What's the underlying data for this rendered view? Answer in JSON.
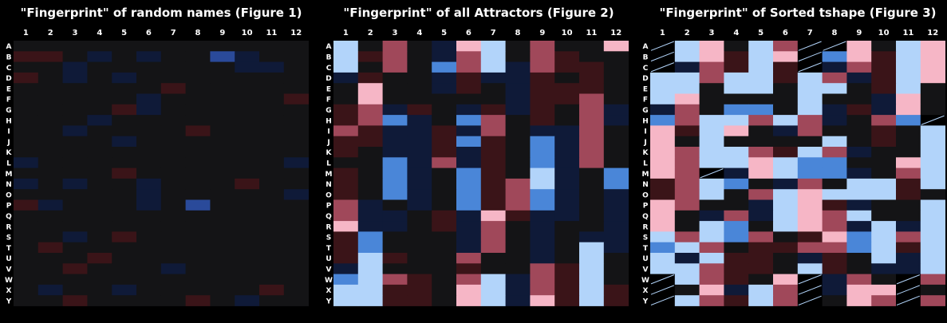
{
  "chart_data": [
    {
      "type": "heatmap",
      "title": "\"Fingerprint\" of random names (Figure 1)",
      "columns": [
        "1",
        "2",
        "3",
        "4",
        "5",
        "6",
        "7",
        "8",
        "9",
        "10",
        "11",
        "12"
      ],
      "rows": [
        "A",
        "B",
        "C",
        "D",
        "E",
        "F",
        "G",
        "H",
        "I",
        "J",
        "K",
        "L",
        "M",
        "N",
        "O",
        "P",
        "Q",
        "R",
        "S",
        "T",
        "U",
        "V",
        "W",
        "X",
        "Y"
      ],
      "cells": [
        [
          "d",
          "d",
          "d",
          "d",
          "d",
          "d",
          "d",
          "d",
          "d",
          "d",
          "d",
          "d"
        ],
        [
          "r",
          "r",
          "d",
          "b",
          "d",
          "b",
          "d",
          "d",
          "B",
          "b",
          "d",
          "d"
        ],
        [
          "d",
          "d",
          "b",
          "d",
          "d",
          "d",
          "d",
          "d",
          "d",
          "b",
          "b",
          "d"
        ],
        [
          "r",
          "d",
          "b",
          "d",
          "b",
          "d",
          "d",
          "d",
          "d",
          "d",
          "d",
          "d"
        ],
        [
          "d",
          "d",
          "d",
          "d",
          "d",
          "d",
          "r",
          "d",
          "d",
          "d",
          "d",
          "d"
        ],
        [
          "d",
          "d",
          "d",
          "d",
          "d",
          "b",
          "d",
          "d",
          "d",
          "d",
          "d",
          "r"
        ],
        [
          "d",
          "d",
          "d",
          "d",
          "r",
          "b",
          "d",
          "d",
          "d",
          "d",
          "d",
          "d"
        ],
        [
          "d",
          "d",
          "d",
          "b",
          "d",
          "d",
          "d",
          "d",
          "d",
          "d",
          "d",
          "d"
        ],
        [
          "d",
          "d",
          "b",
          "d",
          "d",
          "d",
          "d",
          "r",
          "d",
          "d",
          "d",
          "d"
        ],
        [
          "d",
          "d",
          "d",
          "d",
          "b",
          "d",
          "d",
          "d",
          "d",
          "d",
          "d",
          "d"
        ],
        [
          "d",
          "d",
          "d",
          "d",
          "d",
          "d",
          "d",
          "d",
          "d",
          "d",
          "d",
          "d"
        ],
        [
          "b",
          "d",
          "d",
          "d",
          "d",
          "d",
          "d",
          "d",
          "d",
          "d",
          "d",
          "b"
        ],
        [
          "d",
          "d",
          "d",
          "d",
          "r",
          "d",
          "d",
          "d",
          "d",
          "d",
          "d",
          "d"
        ],
        [
          "b",
          "d",
          "b",
          "d",
          "d",
          "b",
          "d",
          "d",
          "d",
          "r",
          "d",
          "d"
        ],
        [
          "d",
          "d",
          "d",
          "d",
          "d",
          "b",
          "d",
          "d",
          "d",
          "d",
          "d",
          "b"
        ],
        [
          "r",
          "b",
          "d",
          "d",
          "d",
          "b",
          "d",
          "B",
          "d",
          "d",
          "d",
          "d"
        ],
        [
          "d",
          "d",
          "d",
          "d",
          "d",
          "d",
          "d",
          "d",
          "d",
          "d",
          "d",
          "d"
        ],
        [
          "d",
          "d",
          "d",
          "d",
          "d",
          "d",
          "d",
          "d",
          "d",
          "d",
          "d",
          "d"
        ],
        [
          "d",
          "d",
          "b",
          "d",
          "r",
          "d",
          "d",
          "d",
          "d",
          "d",
          "d",
          "d"
        ],
        [
          "d",
          "r",
          "d",
          "d",
          "d",
          "d",
          "d",
          "d",
          "d",
          "d",
          "d",
          "d"
        ],
        [
          "d",
          "d",
          "d",
          "r",
          "d",
          "d",
          "d",
          "d",
          "d",
          "d",
          "d",
          "d"
        ],
        [
          "d",
          "d",
          "r",
          "d",
          "d",
          "d",
          "b",
          "d",
          "d",
          "d",
          "d",
          "d"
        ],
        [
          "d",
          "d",
          "d",
          "d",
          "d",
          "d",
          "d",
          "d",
          "d",
          "d",
          "d",
          "d"
        ],
        [
          "d",
          "b",
          "d",
          "d",
          "b",
          "d",
          "d",
          "d",
          "d",
          "d",
          "r",
          "d"
        ],
        [
          "d",
          "d",
          "r",
          "d",
          "d",
          "d",
          "d",
          "r",
          "d",
          "b",
          "d",
          "d"
        ]
      ]
    },
    {
      "type": "heatmap",
      "title": "\"Fingerprint\" of all Attractors (Figure 2)",
      "columns": [
        "1",
        "2",
        "3",
        "4",
        "5",
        "6",
        "7",
        "8",
        "9",
        "10",
        "11",
        "12"
      ],
      "rows": [
        "A",
        "B",
        "C",
        "D",
        "E",
        "F",
        "G",
        "H",
        "I",
        "J",
        "K",
        "L",
        "M",
        "N",
        "O",
        "P",
        "Q",
        "R",
        "S",
        "T",
        "U",
        "V",
        "W",
        "X",
        "Y"
      ],
      "cells": [
        [
          "L",
          "d",
          "R",
          "d",
          "b",
          "P",
          "L",
          "d",
          "R",
          "d",
          "d",
          "P"
        ],
        [
          "L",
          "r",
          "R",
          "d",
          "b",
          "R",
          "L",
          "d",
          "R",
          "r",
          "d",
          "d"
        ],
        [
          "L",
          "d",
          "R",
          "d",
          "M",
          "R",
          "L",
          "b",
          "R",
          "r",
          "r",
          "d"
        ],
        [
          "b",
          "r",
          "d",
          "d",
          "b",
          "r",
          "b",
          "b",
          "r",
          "d",
          "r",
          "d"
        ],
        [
          "d",
          "P",
          "d",
          "d",
          "b",
          "r",
          "d",
          "b",
          "r",
          "r",
          "r",
          "d"
        ],
        [
          "d",
          "P",
          "d",
          "d",
          "d",
          "d",
          "d",
          "b",
          "r",
          "r",
          "R",
          "d"
        ],
        [
          "r",
          "R",
          "b",
          "r",
          "d",
          "b",
          "r",
          "b",
          "r",
          "d",
          "R",
          "b"
        ],
        [
          "r",
          "R",
          "M",
          "b",
          "d",
          "M",
          "R",
          "d",
          "r",
          "d",
          "R",
          "b"
        ],
        [
          "R",
          "r",
          "b",
          "b",
          "r",
          "b",
          "R",
          "d",
          "b",
          "b",
          "R",
          "d"
        ],
        [
          "r",
          "r",
          "b",
          "b",
          "r",
          "M",
          "r",
          "d",
          "M",
          "b",
          "R",
          "d"
        ],
        [
          "r",
          "d",
          "b",
          "b",
          "r",
          "b",
          "r",
          "d",
          "M",
          "b",
          "R",
          "d"
        ],
        [
          "d",
          "d",
          "M",
          "b",
          "R",
          "b",
          "r",
          "d",
          "M",
          "b",
          "R",
          "d"
        ],
        [
          "r",
          "d",
          "M",
          "b",
          "d",
          "M",
          "r",
          "d",
          "L",
          "b",
          "d",
          "M"
        ],
        [
          "r",
          "d",
          "M",
          "b",
          "d",
          "M",
          "r",
          "R",
          "L",
          "b",
          "d",
          "M"
        ],
        [
          "r",
          "d",
          "M",
          "b",
          "d",
          "M",
          "r",
          "R",
          "M",
          "b",
          "d",
          "b"
        ],
        [
          "R",
          "b",
          "d",
          "b",
          "d",
          "M",
          "r",
          "R",
          "M",
          "b",
          "d",
          "b"
        ],
        [
          "R",
          "b",
          "b",
          "d",
          "r",
          "b",
          "P",
          "r",
          "b",
          "b",
          "d",
          "b"
        ],
        [
          "P",
          "b",
          "b",
          "d",
          "r",
          "b",
          "R",
          "d",
          "b",
          "d",
          "d",
          "b"
        ],
        [
          "r",
          "M",
          "d",
          "d",
          "d",
          "b",
          "R",
          "d",
          "b",
          "d",
          "b",
          "b"
        ],
        [
          "r",
          "M",
          "d",
          "d",
          "d",
          "b",
          "R",
          "d",
          "b",
          "d",
          "L",
          "b"
        ],
        [
          "r",
          "L",
          "r",
          "d",
          "d",
          "R",
          "d",
          "d",
          "b",
          "d",
          "L",
          "d"
        ],
        [
          "b",
          "L",
          "d",
          "d",
          "d",
          "r",
          "d",
          "d",
          "R",
          "r",
          "L",
          "d"
        ],
        [
          "M",
          "L",
          "R",
          "r",
          "d",
          "R",
          "L",
          "b",
          "R",
          "r",
          "L",
          "d"
        ],
        [
          "L",
          "L",
          "r",
          "r",
          "d",
          "P",
          "L",
          "b",
          "R",
          "r",
          "L",
          "r"
        ],
        [
          "L",
          "L",
          "r",
          "r",
          "d",
          "P",
          "L",
          "b",
          "P",
          "r",
          "L",
          "r"
        ]
      ]
    },
    {
      "type": "heatmap",
      "title": "\"Fingerprint\" of Sorted tshape (Figure 3)",
      "columns": [
        "1",
        "2",
        "3",
        "4",
        "5",
        "6",
        "7",
        "8",
        "9",
        "10",
        "11",
        "12"
      ],
      "rows": [
        "A",
        "B",
        "C",
        "D",
        "E",
        "F",
        "G",
        "H",
        "I",
        "J",
        "K",
        "L",
        "M",
        "N",
        "O",
        "P",
        "Q",
        "R",
        "S",
        "T",
        "U",
        "V",
        "W",
        "X",
        "Y"
      ],
      "cells": [
        [
          "/",
          "L",
          "P",
          "d",
          "L",
          "R",
          "/",
          "/",
          "P",
          "d",
          "L",
          "P"
        ],
        [
          "/",
          "L",
          "P",
          "r",
          "L",
          "P",
          "/",
          "M",
          "P",
          "r",
          "L",
          "P"
        ],
        [
          "/",
          "b",
          "R",
          "r",
          "L",
          "r",
          "/",
          "b",
          "R",
          "r",
          "L",
          "P"
        ],
        [
          "L",
          "L",
          "R",
          "L",
          "L",
          "r",
          "L",
          "R",
          "b",
          "r",
          "L",
          "P"
        ],
        [
          "L",
          "L",
          "d",
          "L",
          "L",
          "d",
          "L",
          "L",
          "d",
          "r",
          "L",
          "d"
        ],
        [
          "L",
          "P",
          "d",
          "d",
          "d",
          "d",
          "L",
          "d",
          "d",
          "b",
          "P",
          "d"
        ],
        [
          "b",
          "R",
          "d",
          "M",
          "M",
          "d",
          "L",
          "b",
          "r",
          "b",
          "P",
          "d"
        ],
        [
          "M",
          "R",
          "L",
          "L",
          "R",
          "L",
          "R",
          "b",
          "d",
          "R",
          "M",
          "/"
        ],
        [
          "P",
          "r",
          "L",
          "P",
          "d",
          "b",
          "R",
          "d",
          "d",
          "r",
          "d",
          "L"
        ],
        [
          "P",
          "d",
          "L",
          "d",
          "d",
          "d",
          "d",
          "L",
          "d",
          "r",
          "d",
          "L"
        ],
        [
          "P",
          "R",
          "L",
          "L",
          "R",
          "r",
          "L",
          "R",
          "b",
          "d",
          "d",
          "L"
        ],
        [
          "P",
          "R",
          "L",
          "L",
          "P",
          "L",
          "M",
          "M",
          "d",
          "d",
          "P",
          "L"
        ],
        [
          "P",
          "R",
          "/",
          "b",
          "P",
          "L",
          "M",
          "M",
          "b",
          "d",
          "R",
          "L"
        ],
        [
          "r",
          "R",
          "L",
          "M",
          "d",
          "b",
          "R",
          "d",
          "L",
          "L",
          "r",
          "L"
        ],
        [
          "r",
          "R",
          "L",
          "d",
          "R",
          "L",
          "P",
          "L",
          "L",
          "L",
          "r",
          "d"
        ],
        [
          "P",
          "R",
          "d",
          "d",
          "b",
          "L",
          "P",
          "r",
          "b",
          "d",
          "d",
          "L"
        ],
        [
          "P",
          "d",
          "b",
          "R",
          "b",
          "L",
          "P",
          "R",
          "L",
          "d",
          "d",
          "L"
        ],
        [
          "P",
          "d",
          "L",
          "M",
          "d",
          "L",
          "P",
          "R",
          "b",
          "L",
          "b",
          "L"
        ],
        [
          "L",
          "R",
          "L",
          "M",
          "R",
          "d",
          "r",
          "P",
          "M",
          "L",
          "R",
          "L"
        ],
        [
          "M",
          "L",
          "R",
          "d",
          "r",
          "r",
          "R",
          "R",
          "M",
          "L",
          "r",
          "L"
        ],
        [
          "L",
          "b",
          "L",
          "r",
          "r",
          "d",
          "b",
          "r",
          "d",
          "L",
          "b",
          "L"
        ],
        [
          "L",
          "L",
          "R",
          "r",
          "r",
          "d",
          "L",
          "r",
          "d",
          "b",
          "b",
          "L"
        ],
        [
          "/",
          "L",
          "R",
          "r",
          "d",
          "P",
          "/",
          "b",
          "R",
          "d",
          "/",
          "R"
        ],
        [
          "/",
          "d",
          "P",
          "b",
          "L",
          "R",
          "/",
          "b",
          "P",
          "P",
          "/",
          "d"
        ],
        [
          "/",
          "L",
          "R",
          "r",
          "L",
          "R",
          "/",
          "d",
          "P",
          "R",
          "/",
          "R"
        ]
      ]
    }
  ],
  "palette": {
    "d": "#141416",
    "r": "#3a1418",
    "b": "#0f1a38",
    "B": "#2a4a9a",
    "R": "#a0485a",
    "P": "#f6b6c6",
    "L": "#b2d4fa",
    "M": "#4a86d8",
    "/": "#000000"
  }
}
